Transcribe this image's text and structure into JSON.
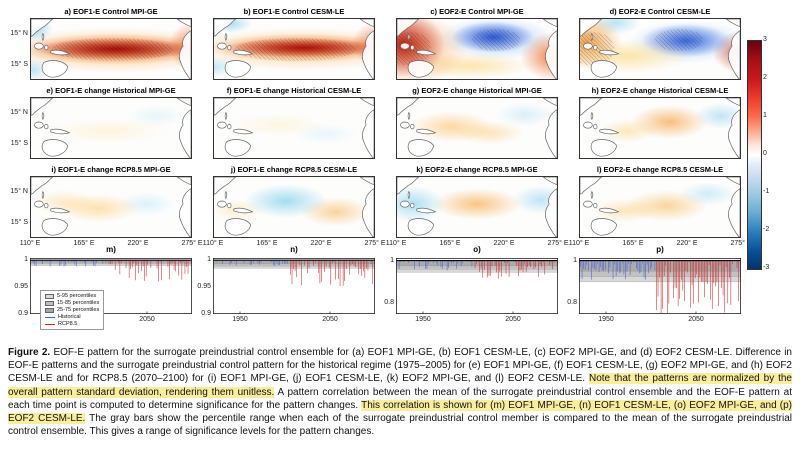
{
  "figure": {
    "maps": {
      "panels": [
        {
          "id": "a",
          "title": "a) EOF1-E Control MPI-GE"
        },
        {
          "id": "b",
          "title": "b) EOF1-E Control CESM-LE"
        },
        {
          "id": "c",
          "title": "c) EOF2-E Control MPI-GE"
        },
        {
          "id": "d",
          "title": "d) EOF2-E Control CESM-LE"
        },
        {
          "id": "e",
          "title": "e) EOF1-E change Historical MPI-GE"
        },
        {
          "id": "f",
          "title": "f) EOF1-E change Historical CESM-LE"
        },
        {
          "id": "g",
          "title": "g) EOF2-E change Historical MPI-GE"
        },
        {
          "id": "h",
          "title": "h) EOF2-E change Historical CESM-LE"
        },
        {
          "id": "i",
          "title": "i) EOF1-E change RCP8.5 MPI-GE"
        },
        {
          "id": "j",
          "title": "j) EOF1-E change RCP8.5 CESM-LE"
        },
        {
          "id": "k",
          "title": "k) EOF2-E change RCP8.5 MPI-GE"
        },
        {
          "id": "l",
          "title": "l) EOF2-E change RCP8.5 CESM-LE"
        }
      ],
      "lat_ticks": [
        "15° N",
        "15° S"
      ],
      "lon_ticks": [
        "110° E",
        "165° E",
        "220° E",
        "275° E"
      ]
    },
    "colorbar": {
      "min": -3,
      "max": 3,
      "ticks": [
        "3",
        "2",
        "1",
        "0",
        "-1",
        "-2",
        "-3"
      ]
    },
    "timeseries": {
      "panels": [
        {
          "label": "m)",
          "ylim": [
            0.9,
            1.004
          ],
          "yticks": [
            1,
            0.95,
            0.9
          ],
          "xlim": [
            1920,
            2100
          ],
          "xticks": [
            1950,
            2050
          ],
          "hist_end": 2005,
          "bands": [
            0.99,
            0.993,
            0.996
          ],
          "hist": {
            "max_dip": 0.012,
            "exp": 2.4
          },
          "rcp": {
            "max_dip": 0.04,
            "exp": 2.6
          }
        },
        {
          "label": "n)",
          "ylim": [
            0.9,
            1.004
          ],
          "yticks": [
            1,
            0.95,
            0.9
          ],
          "xlim": [
            1920,
            2100
          ],
          "xticks": [
            1950,
            2050
          ],
          "hist_end": 2005,
          "bands": [
            0.985,
            0.989,
            0.993
          ],
          "hist": {
            "max_dip": 0.012,
            "exp": 2.4
          },
          "rcp": {
            "max_dip": 0.05,
            "exp": 2.0
          }
        },
        {
          "label": "o)",
          "ylim": [
            0.75,
            1.012
          ],
          "yticks": [
            1,
            0.8
          ],
          "xlim": [
            1920,
            2100
          ],
          "xticks": [
            1950,
            2050
          ],
          "hist_end": 2005,
          "bands": [
            0.945,
            0.96,
            0.975
          ],
          "hist": {
            "max_dip": 0.05,
            "exp": 2.4
          },
          "rcp": {
            "max_dip": 0.09,
            "exp": 2.0
          }
        },
        {
          "label": "p)",
          "ylim": [
            0.75,
            1.012
          ],
          "yticks": [
            1,
            0.8
          ],
          "xlim": [
            1920,
            2100
          ],
          "xticks": [
            1950,
            2050
          ],
          "hist_end": 2005,
          "bands": [
            0.9,
            0.925,
            0.95
          ],
          "hist": {
            "max_dip": 0.09,
            "exp": 1.6
          },
          "rcp": {
            "max_dip": 0.26,
            "exp": 1.0
          }
        }
      ],
      "legend": [
        {
          "label": "5-95 percentiles",
          "type": "patch",
          "color": "#d9d9d9"
        },
        {
          "label": "15-85 percentiles",
          "type": "patch",
          "color": "#bfbfbf"
        },
        {
          "label": "25-75 percentiles",
          "type": "patch",
          "color": "#a6a6a6"
        },
        {
          "label": "Historical",
          "type": "line",
          "color": "#3b5fd9"
        },
        {
          "label": "RCP8.5",
          "type": "line",
          "color": "#cc2626"
        }
      ],
      "colors": {
        "historical": "#3b5fd9",
        "rcp": "#cc2626",
        "mean_line": "#000000",
        "band_grays": [
          "#d8d8d8",
          "#c2c2c2",
          "#ababab"
        ]
      }
    }
  },
  "caption": {
    "highlight_color": "#f9ee9a",
    "segments": [
      {
        "text": "Figure 2.",
        "bold": true
      },
      {
        "text": " EOF-E pattern for the surrogate preindustrial control ensemble for (a) EOF1 MPI-GE, (b) EOF1 CESM-LE, (c) EOF2 MPI-GE, and (d) EOF2 CESM-LE. Difference in EOF-E patterns and the surrogate preindustrial control pattern for the historical regime (1975–2005) for (e) EOF1 MPI-GE, (f) EOF1 CESM-LE, (g) EOF2 MPI-GE, and (h) EOF2 CESM-LE and for RCP8.5 (2070–2100) for (i) EOF1 MPI-GE, (j) EOF1 CESM-LE, (k) EOF2 MPI-GE, and (l) EOF2 CESM-LE. "
      },
      {
        "text": "Note that the patterns are normalized by the overall pattern standard deviation, rendering them unitless.",
        "highlight": true
      },
      {
        "text": " A pattern correlation between the mean of the surrogate preindustrial control ensemble and the EOF-E pattern at each time point is computed to determine significance for the pattern changes. "
      },
      {
        "text": "This correlation is shown for (m) EOF1 MPI-GE, (n) EOF1 CESM-LE, (o) EOF2 MPI-GE, and (p) EOF2 CESM-LE.",
        "highlight": true
      },
      {
        "text": " The gray bars show the percentile range when each of the surrogate preindustrial control member is compared to the mean of the surrogate preindustrial control ensemble. This gives a range of significance levels for the pattern changes."
      }
    ]
  }
}
